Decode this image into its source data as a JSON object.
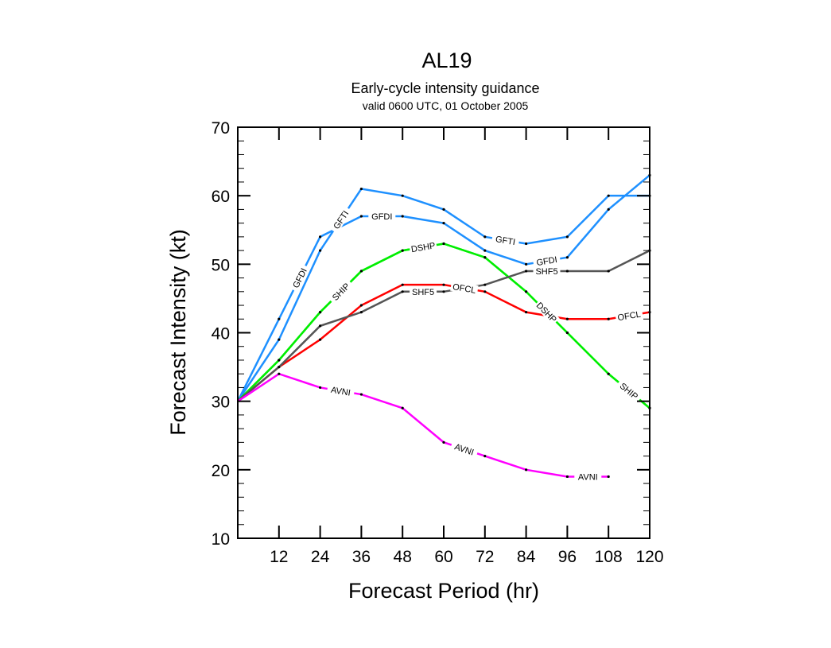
{
  "chart_data": {
    "type": "line",
    "title": "AL19",
    "subtitle": "Early-cycle intensity guidance",
    "subtitle2": "valid 0600 UTC, 01 October 2005",
    "xlabel": "Forecast Period (hr)",
    "ylabel": "Forecast Intensity (kt)",
    "xlim": [
      0,
      120
    ],
    "ylim": [
      10,
      70
    ],
    "xticks": [
      12,
      24,
      36,
      48,
      60,
      72,
      84,
      96,
      108,
      120
    ],
    "yticks": [
      10,
      20,
      30,
      40,
      50,
      60,
      70
    ],
    "grid": false,
    "x": [
      0,
      12,
      24,
      36,
      48,
      60,
      72,
      84,
      96,
      108,
      120
    ],
    "series": [
      {
        "name": "GFTI",
        "color": "#1e90ff",
        "values": [
          30,
          39,
          52,
          61,
          60,
          58,
          54,
          53,
          54,
          60,
          60
        ]
      },
      {
        "name": "GFDI",
        "color": "#1e90ff",
        "values": [
          30,
          42,
          54,
          57,
          57,
          56,
          52,
          50,
          51,
          58,
          63
        ]
      },
      {
        "name": "SHIP",
        "color": "#00ee00",
        "values": [
          30,
          36,
          43,
          49,
          52,
          53,
          51,
          46,
          40,
          34,
          29
        ]
      },
      {
        "name": "DSHP",
        "color": "#00ee00",
        "values": [
          30,
          36,
          43,
          49,
          52,
          53,
          51,
          46,
          40,
          34,
          29
        ]
      },
      {
        "name": "OFCL",
        "color": "#ff0000",
        "values": [
          30,
          35,
          39,
          44,
          47,
          47,
          46,
          43,
          42,
          42,
          43
        ]
      },
      {
        "name": "SHF5",
        "color": "#555555",
        "values": [
          30,
          35,
          41,
          43,
          46,
          46,
          47,
          49,
          49,
          49,
          52
        ]
      },
      {
        "name": "AVNI",
        "color": "#ff00ff",
        "values": [
          30,
          34,
          32,
          31,
          29,
          24,
          22,
          20,
          19,
          19,
          null
        ]
      }
    ]
  }
}
